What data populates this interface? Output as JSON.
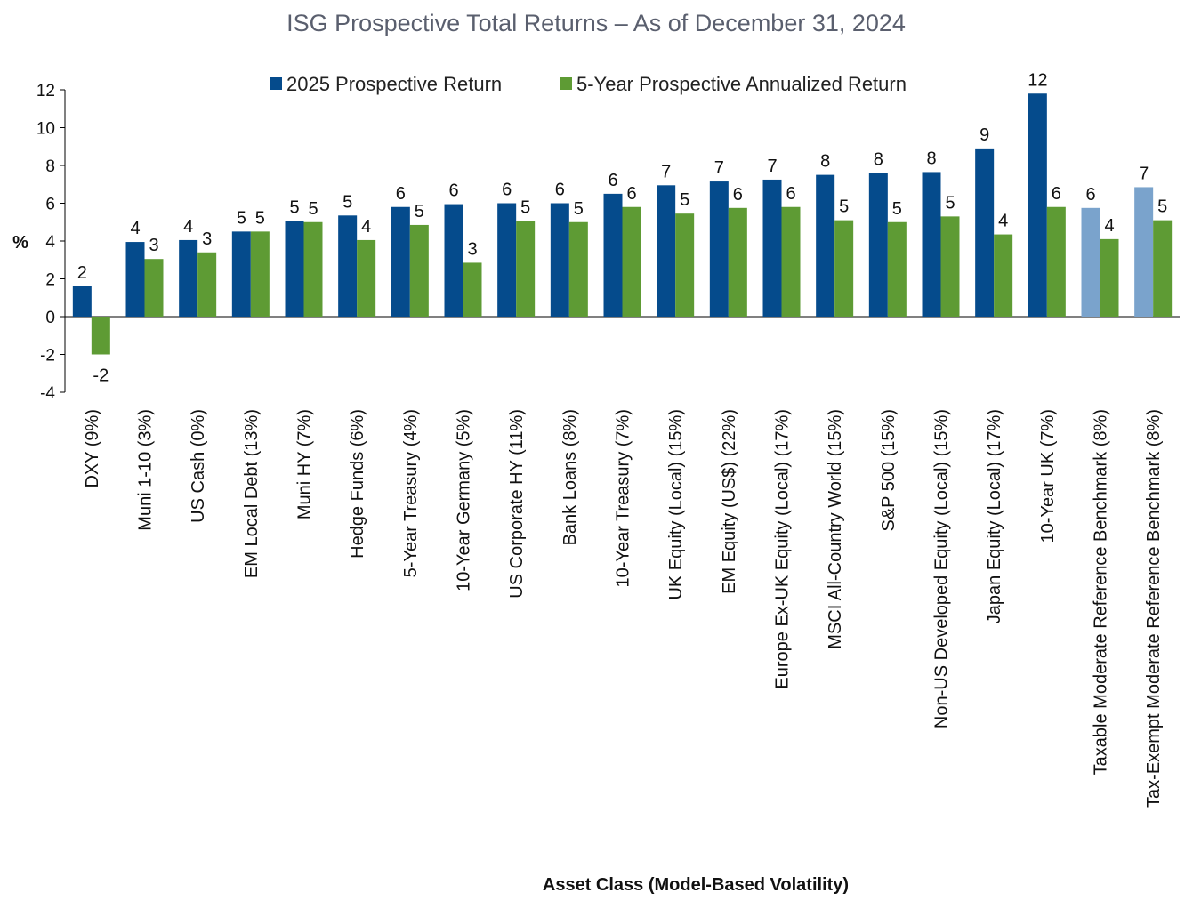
{
  "chart_data": {
    "type": "bar",
    "title": "ISG Prospective Total Returns – As of December 31, 2024",
    "ylabel": "%",
    "xlabel": "Asset Class (Model-Based Volatility)",
    "ylim": [
      -4,
      12
    ],
    "yticks": [
      12,
      10,
      8,
      6,
      4,
      2,
      0,
      -2,
      -4
    ],
    "legend_position": "top-center",
    "colors": {
      "series1": "#054b8c",
      "series1_benchmark": "#7aa3cc",
      "series2": "#5e9b34"
    },
    "categories": [
      "DXY (9%)",
      "Muni 1-10 (3%)",
      "US Cash (0%)",
      "EM Local Debt (13%)",
      "Muni HY (7%)",
      "Hedge Funds (6%)",
      "5-Year Treasury (4%)",
      "10-Year Germany (5%)",
      "US Corporate HY (11%)",
      "Bank Loans (8%)",
      "10-Year Treasury (7%)",
      "UK Equity (Local) (15%)",
      "EM Equity (US$) (22%)",
      "Europe Ex-UK Equity (Local) (17%)",
      "MSCI All-Country World (15%)",
      "S&P 500 (15%)",
      "Non-US Developed Equity (Local) (15%)",
      "Japan Equity (Local) (17%)",
      "10-Year UK (7%)",
      "Taxable Moderate Reference Benchmark (8%)",
      "Tax-Exempt Moderate Reference Benchmark (8%)"
    ],
    "benchmark_categories": [
      19,
      20
    ],
    "series": [
      {
        "name": "2025 Prospective Return",
        "values": [
          1.6,
          3.95,
          4.05,
          4.5,
          5.05,
          5.35,
          5.8,
          5.95,
          6.0,
          6.0,
          6.5,
          6.95,
          7.15,
          7.25,
          7.5,
          7.6,
          7.65,
          8.9,
          11.8,
          5.75,
          6.85
        ],
        "labels": [
          "2",
          "4",
          "4",
          "5",
          "5",
          "5",
          "6",
          "6",
          "6",
          "6",
          "6",
          "7",
          "7",
          "7",
          "8",
          "8",
          "8",
          "9",
          "12",
          "6",
          "7"
        ]
      },
      {
        "name": "5-Year Prospective Annualized Return",
        "values": [
          -2.0,
          3.05,
          3.4,
          4.5,
          5.0,
          4.05,
          4.85,
          2.85,
          5.05,
          5.0,
          5.8,
          5.45,
          5.75,
          5.8,
          5.1,
          5.0,
          5.3,
          4.35,
          5.8,
          4.1,
          5.1
        ],
        "labels": [
          "-2",
          "3",
          "3",
          "5",
          "5",
          "4",
          "5",
          "3",
          "5",
          "5",
          "6",
          "5",
          "6",
          "6",
          "5",
          "5",
          "5",
          "4",
          "6",
          "4",
          "5"
        ]
      }
    ]
  }
}
